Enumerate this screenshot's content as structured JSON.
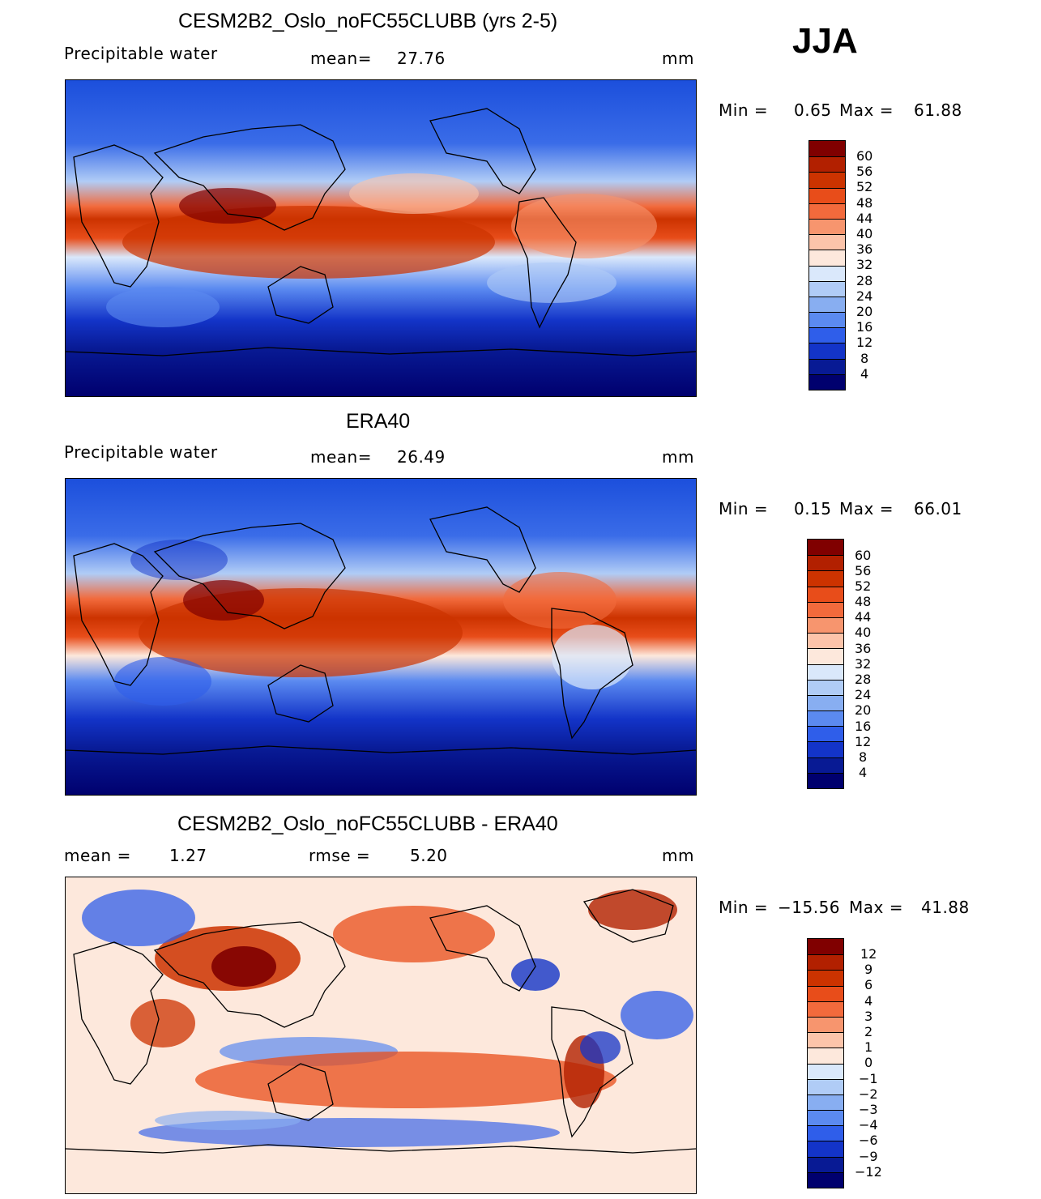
{
  "header": {
    "season": "JJA"
  },
  "panels": [
    {
      "title": "CESM2B2_Oslo_noFC55CLUBB (yrs 2-5)",
      "variable": "Precipitable water",
      "stat_label": "mean=",
      "stat_value": "27.76",
      "units": "mm",
      "min_label": "Min =",
      "min_value": "0.65",
      "max_label": "Max =",
      "max_value": "61.88",
      "colorbar": {
        "labels": [
          "60",
          "56",
          "52",
          "48",
          "44",
          "40",
          "36",
          "32",
          "28",
          "24",
          "20",
          "16",
          "12",
          "8",
          "4"
        ],
        "colors": [
          "#800000",
          "#b22000",
          "#cc3300",
          "#e84d1a",
          "#f26a3c",
          "#f7956e",
          "#fcc4aa",
          "#fde8dc",
          "#dae8fb",
          "#b0ccf6",
          "#88aef1",
          "#5b8af0",
          "#2f5eea",
          "#1334c8",
          "#081a94",
          "#00006e"
        ]
      }
    },
    {
      "title": "ERA40",
      "variable": "Precipitable water",
      "stat_label": "mean=",
      "stat_value": "26.49",
      "units": "mm",
      "min_label": "Min =",
      "min_value": "0.15",
      "max_label": "Max =",
      "max_value": "66.01",
      "colorbar": {
        "labels": [
          "60",
          "56",
          "52",
          "48",
          "44",
          "40",
          "36",
          "32",
          "28",
          "24",
          "20",
          "16",
          "12",
          "8",
          "4"
        ],
        "colors": [
          "#800000",
          "#b22000",
          "#cc3300",
          "#e84d1a",
          "#f26a3c",
          "#f7956e",
          "#fcc4aa",
          "#fde8dc",
          "#dae8fb",
          "#b0ccf6",
          "#88aef1",
          "#5b8af0",
          "#2f5eea",
          "#1334c8",
          "#081a94",
          "#00006e"
        ]
      }
    },
    {
      "title": "CESM2B2_Oslo_noFC55CLUBB - ERA40",
      "stat_label": "mean =",
      "stat_value": "1.27",
      "rmse_label": "rmse =",
      "rmse_value": "5.20",
      "units": "mm",
      "min_label": "Min =",
      "min_value": "−15.56",
      "max_label": "Max =",
      "max_value": "41.88",
      "colorbar": {
        "labels": [
          "12",
          "9",
          "6",
          "4",
          "3",
          "2",
          "1",
          "0",
          "−1",
          "−2",
          "−3",
          "−4",
          "−6",
          "−9",
          "−12"
        ],
        "colors": [
          "#800000",
          "#b22000",
          "#cc3300",
          "#e84d1a",
          "#f26a3c",
          "#f7956e",
          "#fcc4aa",
          "#fde8dc",
          "#dae8fb",
          "#b0ccf6",
          "#88aef1",
          "#5b8af0",
          "#2f5eea",
          "#1334c8",
          "#081a94",
          "#00006e"
        ]
      }
    }
  ]
}
